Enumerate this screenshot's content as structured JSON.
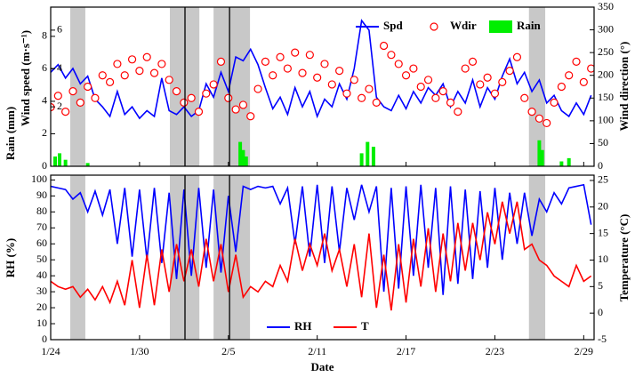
{
  "chart_data": [
    {
      "type": "line",
      "ylabel": "Rain (mm)",
      "speed_label": "Wind speed (m·s⁻¹)",
      "y2label": "Wind direction (°)",
      "ylim": [
        0,
        9.8
      ],
      "yticks": [
        0,
        2,
        4,
        6,
        8
      ],
      "speed_ylim": [
        -1.1,
        7.2
      ],
      "speed_yticks": [
        2,
        4,
        6
      ],
      "y2lim": [
        0,
        350
      ],
      "y2ticks": [
        0,
        50,
        100,
        150,
        200,
        250,
        300,
        350
      ],
      "shaded_periods": [
        [
          1.32,
          2.34
        ],
        [
          8.05,
          10.04
        ],
        [
          11.0,
          13.46
        ],
        [
          32.3,
          33.4
        ]
      ],
      "marker_lines": [
        9.07,
        12.08
      ],
      "x": [
        0,
        0.5,
        1,
        1.5,
        2,
        2.5,
        3,
        3.5,
        4,
        4.5,
        5,
        5.5,
        6,
        6.5,
        7,
        7.5,
        8,
        8.5,
        9,
        9.5,
        10,
        10.5,
        11,
        11.5,
        12,
        12.5,
        13,
        13.5,
        14,
        14.5,
        15,
        15.5,
        16,
        16.5,
        17,
        17.5,
        18,
        18.5,
        19,
        19.5,
        20,
        20.5,
        21,
        21.5,
        22,
        22.5,
        23,
        23.5,
        24,
        24.5,
        25,
        25.5,
        26,
        26.5,
        27,
        27.5,
        28,
        28.5,
        29,
        29.5,
        30,
        30.5,
        31,
        31.5,
        32,
        32.5,
        33,
        33.5,
        34,
        34.5,
        35,
        35.5,
        36,
        36.5
      ],
      "series": [
        {
          "name": "Spd",
          "type": "line",
          "axis": "speed",
          "color": "#0000ff",
          "values": [
            3.8,
            4.2,
            3.5,
            4.0,
            3.2,
            3.6,
            2.4,
            2.0,
            1.5,
            2.8,
            1.6,
            2.0,
            1.4,
            1.8,
            1.5,
            3.5,
            1.8,
            1.6,
            2.0,
            1.5,
            1.8,
            3.2,
            2.5,
            3.8,
            2.8,
            4.6,
            4.4,
            5.0,
            4.2,
            3.0,
            1.9,
            2.5,
            1.6,
            3.0,
            2.0,
            2.8,
            1.5,
            2.4,
            2.0,
            3.2,
            2.4,
            4.0,
            6.5,
            6.0,
            2.5,
            2.0,
            1.8,
            2.6,
            1.9,
            2.8,
            2.2,
            3.0,
            2.6,
            3.2,
            2.0,
            2.8,
            2.2,
            3.4,
            2.0,
            3.0,
            2.4,
            3.6,
            4.5,
            3.2,
            3.8,
            2.8,
            3.4,
            2.2,
            2.6,
            1.8,
            1.5,
            2.2,
            1.6,
            2.6
          ]
        },
        {
          "name": "Wdir",
          "type": "scatter",
          "axis": "y2",
          "color": "#ff0000",
          "values": [
            130,
            155,
            120,
            165,
            140,
            175,
            150,
            200,
            185,
            225,
            200,
            235,
            210,
            240,
            205,
            225,
            190,
            165,
            140,
            150,
            120,
            160,
            180,
            230,
            150,
            125,
            135,
            110,
            170,
            230,
            200,
            240,
            215,
            250,
            205,
            245,
            195,
            225,
            180,
            210,
            160,
            190,
            150,
            170,
            140,
            265,
            245,
            225,
            200,
            215,
            175,
            190,
            150,
            165,
            140,
            120,
            215,
            230,
            180,
            195,
            160,
            185,
            210,
            240,
            150,
            120,
            105,
            95,
            140,
            175,
            200,
            230,
            185,
            215
          ]
        },
        {
          "name": "Rain",
          "type": "bar",
          "axis": "y",
          "color": "#00ee00",
          "x": [
            0.3,
            0.6,
            1.0,
            2.5,
            12.8,
            13.0,
            13.2,
            21.0,
            21.4,
            21.8,
            33.0,
            33.2,
            34.5,
            35.0
          ],
          "values": [
            0.6,
            0.8,
            0.4,
            0.2,
            1.5,
            1.0,
            0.6,
            0.8,
            1.5,
            1.2,
            1.6,
            1.0,
            0.3,
            0.5
          ]
        }
      ]
    },
    {
      "type": "line",
      "xlabel": "Date",
      "ylabel": "RH (%)",
      "y2label": "Temperature (°C)",
      "xlim": [
        0,
        36.7
      ],
      "xticks": [
        {
          "value": 0,
          "label": "1/24"
        },
        {
          "value": 6,
          "label": "1/30"
        },
        {
          "value": 12,
          "label": "2/5"
        },
        {
          "value": 18,
          "label": "2/11"
        },
        {
          "value": 24,
          "label": "2/17"
        },
        {
          "value": 30,
          "label": "2/23"
        },
        {
          "value": 36,
          "label": "2/29"
        }
      ],
      "ylim": [
        0,
        103
      ],
      "yticks": [
        0,
        10,
        20,
        30,
        40,
        50,
        60,
        70,
        80,
        90,
        100
      ],
      "y2lim": [
        -5,
        26
      ],
      "y2ticks": [
        -5,
        0,
        5,
        10,
        15,
        20,
        25
      ],
      "series": [
        {
          "name": "RH",
          "axis": "y",
          "color": "#0000ff",
          "values": [
            96,
            95,
            94,
            88,
            92,
            80,
            93,
            78,
            94,
            60,
            95,
            52,
            94,
            50,
            95,
            48,
            92,
            38,
            94,
            40,
            95,
            45,
            94,
            42,
            90,
            55,
            96,
            94,
            96,
            95,
            96,
            85,
            95,
            60,
            96,
            52,
            97,
            48,
            96,
            55,
            95,
            75,
            97,
            80,
            96,
            30,
            95,
            32,
            96,
            40,
            97,
            45,
            95,
            28,
            96,
            35,
            94,
            38,
            93,
            45,
            95,
            50,
            92,
            60,
            92,
            65,
            88,
            80,
            92,
            85,
            95,
            96,
            97,
            72
          ]
        },
        {
          "name": "T",
          "axis": "y2",
          "color": "#ff0000",
          "values": [
            6,
            5,
            4.5,
            5,
            3,
            4.5,
            2.5,
            5,
            2,
            6,
            1.5,
            10,
            1,
            11,
            1.5,
            12,
            4,
            13,
            6,
            12,
            5,
            14,
            6,
            13,
            4,
            11,
            3,
            5,
            4,
            6,
            5,
            9,
            6,
            14,
            8,
            13,
            9,
            15,
            8,
            12,
            5,
            13,
            3,
            15,
            1,
            11,
            0.5,
            13,
            2,
            14,
            5,
            16,
            4,
            15,
            6,
            17,
            8,
            17,
            10,
            19,
            13,
            21,
            15,
            21,
            12,
            13,
            10,
            9,
            7,
            6,
            5,
            9,
            6,
            7
          ]
        }
      ]
    }
  ]
}
